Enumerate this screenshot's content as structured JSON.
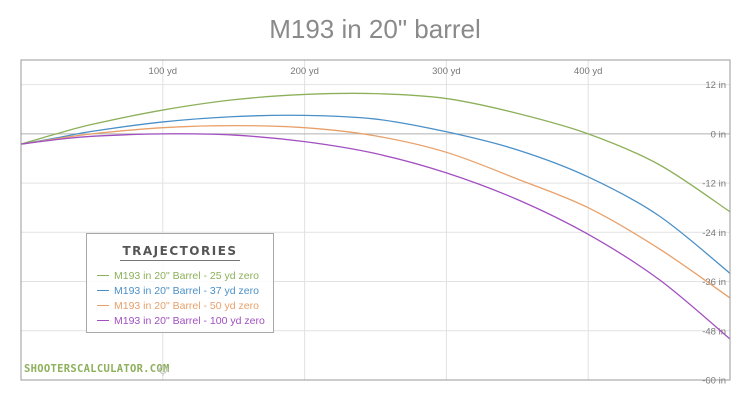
{
  "chart_data": {
    "type": "line",
    "title": "M193 in 20\" barrel",
    "xlabel": "",
    "ylabel": "",
    "x_unit": "yd",
    "xlim": [
      0,
      500
    ],
    "ylim": [
      -60,
      18
    ],
    "x_ticks": [
      100,
      200,
      300,
      400
    ],
    "x_tick_labels": [
      "100 yd",
      "200 yd",
      "300 yd",
      "400 yd"
    ],
    "y_ticks": [
      12,
      0,
      -12,
      -24,
      -36,
      -48,
      -60
    ],
    "y_tick_labels": [
      "12 in",
      "0 in",
      "-12 in",
      "-24 in",
      "-36 in",
      "-48 in",
      "-60 in"
    ],
    "grid": true,
    "legend_title": "TRAJECTORIES",
    "legend_position": "bottom-left",
    "x": [
      0,
      25,
      50,
      100,
      150,
      200,
      250,
      300,
      350,
      400,
      450,
      500
    ],
    "series": [
      {
        "name": "M193 in 20\" Barrel - 25 yd zero",
        "color": "#8db05a",
        "values": [
          -2.5,
          0.0,
          2.3,
          5.8,
          8.3,
          9.6,
          9.8,
          8.6,
          5.0,
          0.0,
          -7.5,
          -19.0
        ]
      },
      {
        "name": "M193 in 20\" Barrel - 37 yd zero",
        "color": "#4a90c8",
        "values": [
          -2.5,
          -1.0,
          0.6,
          2.9,
          4.2,
          4.5,
          3.6,
          0.5,
          -3.9,
          -10.5,
          -20.0,
          -34.0
        ]
      },
      {
        "name": "M193 in 20\" Barrel - 50 yd zero",
        "color": "#e8a06a",
        "values": [
          -2.5,
          -1.2,
          0.0,
          1.5,
          2.0,
          1.5,
          -0.5,
          -4.5,
          -11.0,
          -18.0,
          -28.0,
          -40.0
        ]
      },
      {
        "name": "M193 in 20\" Barrel - 100 yd zero",
        "color": "#a24fc0",
        "values": [
          -2.5,
          -1.4,
          -0.6,
          0.0,
          -0.3,
          -1.9,
          -4.8,
          -9.5,
          -16.0,
          -24.5,
          -35.5,
          -50.0
        ]
      }
    ]
  },
  "branding": {
    "text": "SHOOTERSCALCULATOR.COM",
    "color": "#8db05a",
    "icon": "crosshair-icon"
  },
  "colors": {
    "title": "#8a8a8a",
    "axis_text": "#777777",
    "grid": "#e2e2e2",
    "zero_line": "#b0b0b0",
    "frame": "#9a9a9a"
  }
}
